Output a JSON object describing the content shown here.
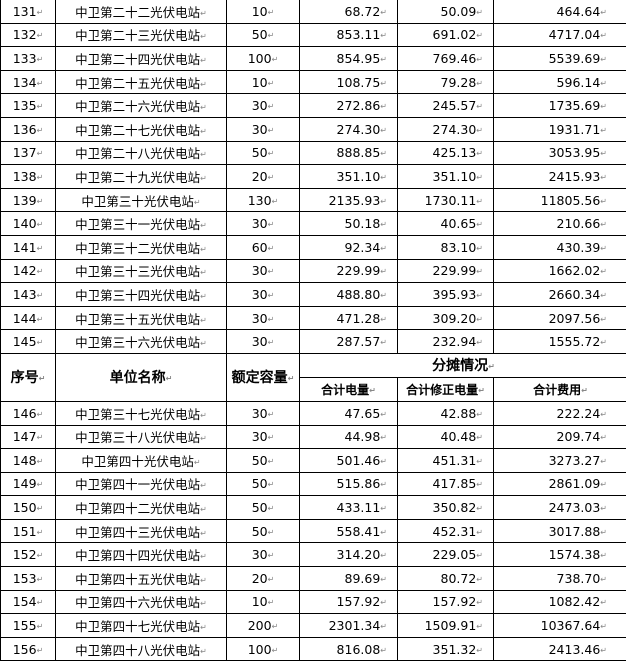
{
  "header": {
    "seq": "序号",
    "unit_name": "单位名称",
    "rated_capacity": "额定容量",
    "allocation": "分摊情况",
    "total_power": "合计电量",
    "total_corrected_power": "合计修正电量",
    "total_cost": "合计费用"
  },
  "rows_top": [
    [
      "131",
      "中卫第二十二光伏电站",
      "10",
      "68.72",
      "50.09",
      "464.64"
    ],
    [
      "132",
      "中卫第二十三光伏电站",
      "50",
      "853.11",
      "691.02",
      "4717.04"
    ],
    [
      "133",
      "中卫第二十四光伏电站",
      "100",
      "854.95",
      "769.46",
      "5539.69"
    ],
    [
      "134",
      "中卫第二十五光伏电站",
      "10",
      "108.75",
      "79.28",
      "596.14"
    ],
    [
      "135",
      "中卫第二十六光伏电站",
      "30",
      "272.86",
      "245.57",
      "1735.69"
    ],
    [
      "136",
      "中卫第二十七光伏电站",
      "30",
      "274.30",
      "274.30",
      "1931.71"
    ],
    [
      "137",
      "中卫第二十八光伏电站",
      "50",
      "888.85",
      "425.13",
      "3053.95"
    ],
    [
      "138",
      "中卫第二十九光伏电站",
      "20",
      "351.10",
      "351.10",
      "2415.93"
    ],
    [
      "139",
      "中卫第三十光伏电站",
      "130",
      "2135.93",
      "1730.11",
      "11805.56"
    ],
    [
      "140",
      "中卫第三十一光伏电站",
      "30",
      "50.18",
      "40.65",
      "210.66"
    ],
    [
      "141",
      "中卫第三十二光伏电站",
      "60",
      "92.34",
      "83.10",
      "430.39"
    ],
    [
      "142",
      "中卫第三十三光伏电站",
      "30",
      "229.99",
      "229.99",
      "1662.02"
    ],
    [
      "143",
      "中卫第三十四光伏电站",
      "30",
      "488.80",
      "395.93",
      "2660.34"
    ],
    [
      "144",
      "中卫第三十五光伏电站",
      "30",
      "471.28",
      "309.20",
      "2097.56"
    ],
    [
      "145",
      "中卫第三十六光伏电站",
      "30",
      "287.57",
      "232.94",
      "1555.72"
    ]
  ],
  "rows_bottom": [
    [
      "146",
      "中卫第三十七光伏电站",
      "30",
      "47.65",
      "42.88",
      "222.24"
    ],
    [
      "147",
      "中卫第三十八光伏电站",
      "30",
      "44.98",
      "40.48",
      "209.74"
    ],
    [
      "148",
      "中卫第四十光伏电站",
      "50",
      "501.46",
      "451.31",
      "3273.27"
    ],
    [
      "149",
      "中卫第四十一光伏电站",
      "50",
      "515.86",
      "417.85",
      "2861.09"
    ],
    [
      "150",
      "中卫第四十二光伏电站",
      "50",
      "433.11",
      "350.82",
      "2473.03"
    ],
    [
      "151",
      "中卫第四十三光伏电站",
      "50",
      "558.41",
      "452.31",
      "3017.88"
    ],
    [
      "152",
      "中卫第四十四光伏电站",
      "30",
      "314.20",
      "229.05",
      "1574.38"
    ],
    [
      "153",
      "中卫第四十五光伏电站",
      "20",
      "89.69",
      "80.72",
      "738.70"
    ],
    [
      "154",
      "中卫第四十六光伏电站",
      "10",
      "157.92",
      "157.92",
      "1082.42"
    ],
    [
      "155",
      "中卫第四十七光伏电站",
      "200",
      "2301.34",
      "1509.91",
      "10367.64"
    ],
    [
      "156",
      "中卫第四十八光伏电站",
      "100",
      "816.08",
      "351.32",
      "2413.46"
    ]
  ]
}
